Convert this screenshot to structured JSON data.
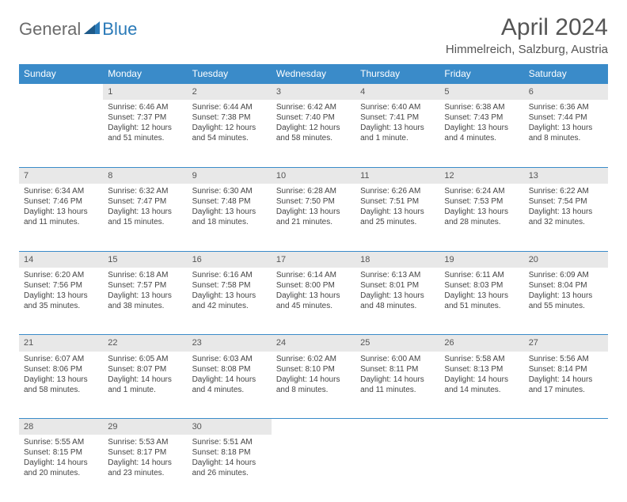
{
  "logo": {
    "part1": "General",
    "part2": "Blue"
  },
  "title": "April 2024",
  "location": "Himmelreich, Salzburg, Austria",
  "colors": {
    "header_bg": "#3a8bc9",
    "header_text": "#ffffff",
    "daynum_bg": "#e8e8e8",
    "border": "#3a8bc9",
    "logo_gray": "#6b6b6b",
    "logo_blue": "#2a7ab8"
  },
  "weekdays": [
    "Sunday",
    "Monday",
    "Tuesday",
    "Wednesday",
    "Thursday",
    "Friday",
    "Saturday"
  ],
  "weeks": [
    {
      "nums": [
        "",
        "1",
        "2",
        "3",
        "4",
        "5",
        "6"
      ],
      "cells": [
        {
          "empty": true
        },
        {
          "sunrise": "Sunrise: 6:46 AM",
          "sunset": "Sunset: 7:37 PM",
          "daylight": "Daylight: 12 hours and 51 minutes."
        },
        {
          "sunrise": "Sunrise: 6:44 AM",
          "sunset": "Sunset: 7:38 PM",
          "daylight": "Daylight: 12 hours and 54 minutes."
        },
        {
          "sunrise": "Sunrise: 6:42 AM",
          "sunset": "Sunset: 7:40 PM",
          "daylight": "Daylight: 12 hours and 58 minutes."
        },
        {
          "sunrise": "Sunrise: 6:40 AM",
          "sunset": "Sunset: 7:41 PM",
          "daylight": "Daylight: 13 hours and 1 minute."
        },
        {
          "sunrise": "Sunrise: 6:38 AM",
          "sunset": "Sunset: 7:43 PM",
          "daylight": "Daylight: 13 hours and 4 minutes."
        },
        {
          "sunrise": "Sunrise: 6:36 AM",
          "sunset": "Sunset: 7:44 PM",
          "daylight": "Daylight: 13 hours and 8 minutes."
        }
      ]
    },
    {
      "nums": [
        "7",
        "8",
        "9",
        "10",
        "11",
        "12",
        "13"
      ],
      "cells": [
        {
          "sunrise": "Sunrise: 6:34 AM",
          "sunset": "Sunset: 7:46 PM",
          "daylight": "Daylight: 13 hours and 11 minutes."
        },
        {
          "sunrise": "Sunrise: 6:32 AM",
          "sunset": "Sunset: 7:47 PM",
          "daylight": "Daylight: 13 hours and 15 minutes."
        },
        {
          "sunrise": "Sunrise: 6:30 AM",
          "sunset": "Sunset: 7:48 PM",
          "daylight": "Daylight: 13 hours and 18 minutes."
        },
        {
          "sunrise": "Sunrise: 6:28 AM",
          "sunset": "Sunset: 7:50 PM",
          "daylight": "Daylight: 13 hours and 21 minutes."
        },
        {
          "sunrise": "Sunrise: 6:26 AM",
          "sunset": "Sunset: 7:51 PM",
          "daylight": "Daylight: 13 hours and 25 minutes."
        },
        {
          "sunrise": "Sunrise: 6:24 AM",
          "sunset": "Sunset: 7:53 PM",
          "daylight": "Daylight: 13 hours and 28 minutes."
        },
        {
          "sunrise": "Sunrise: 6:22 AM",
          "sunset": "Sunset: 7:54 PM",
          "daylight": "Daylight: 13 hours and 32 minutes."
        }
      ]
    },
    {
      "nums": [
        "14",
        "15",
        "16",
        "17",
        "18",
        "19",
        "20"
      ],
      "cells": [
        {
          "sunrise": "Sunrise: 6:20 AM",
          "sunset": "Sunset: 7:56 PM",
          "daylight": "Daylight: 13 hours and 35 minutes."
        },
        {
          "sunrise": "Sunrise: 6:18 AM",
          "sunset": "Sunset: 7:57 PM",
          "daylight": "Daylight: 13 hours and 38 minutes."
        },
        {
          "sunrise": "Sunrise: 6:16 AM",
          "sunset": "Sunset: 7:58 PM",
          "daylight": "Daylight: 13 hours and 42 minutes."
        },
        {
          "sunrise": "Sunrise: 6:14 AM",
          "sunset": "Sunset: 8:00 PM",
          "daylight": "Daylight: 13 hours and 45 minutes."
        },
        {
          "sunrise": "Sunrise: 6:13 AM",
          "sunset": "Sunset: 8:01 PM",
          "daylight": "Daylight: 13 hours and 48 minutes."
        },
        {
          "sunrise": "Sunrise: 6:11 AM",
          "sunset": "Sunset: 8:03 PM",
          "daylight": "Daylight: 13 hours and 51 minutes."
        },
        {
          "sunrise": "Sunrise: 6:09 AM",
          "sunset": "Sunset: 8:04 PM",
          "daylight": "Daylight: 13 hours and 55 minutes."
        }
      ]
    },
    {
      "nums": [
        "21",
        "22",
        "23",
        "24",
        "25",
        "26",
        "27"
      ],
      "cells": [
        {
          "sunrise": "Sunrise: 6:07 AM",
          "sunset": "Sunset: 8:06 PM",
          "daylight": "Daylight: 13 hours and 58 minutes."
        },
        {
          "sunrise": "Sunrise: 6:05 AM",
          "sunset": "Sunset: 8:07 PM",
          "daylight": "Daylight: 14 hours and 1 minute."
        },
        {
          "sunrise": "Sunrise: 6:03 AM",
          "sunset": "Sunset: 8:08 PM",
          "daylight": "Daylight: 14 hours and 4 minutes."
        },
        {
          "sunrise": "Sunrise: 6:02 AM",
          "sunset": "Sunset: 8:10 PM",
          "daylight": "Daylight: 14 hours and 8 minutes."
        },
        {
          "sunrise": "Sunrise: 6:00 AM",
          "sunset": "Sunset: 8:11 PM",
          "daylight": "Daylight: 14 hours and 11 minutes."
        },
        {
          "sunrise": "Sunrise: 5:58 AM",
          "sunset": "Sunset: 8:13 PM",
          "daylight": "Daylight: 14 hours and 14 minutes."
        },
        {
          "sunrise": "Sunrise: 5:56 AM",
          "sunset": "Sunset: 8:14 PM",
          "daylight": "Daylight: 14 hours and 17 minutes."
        }
      ]
    },
    {
      "nums": [
        "28",
        "29",
        "30",
        "",
        "",
        "",
        ""
      ],
      "cells": [
        {
          "sunrise": "Sunrise: 5:55 AM",
          "sunset": "Sunset: 8:15 PM",
          "daylight": "Daylight: 14 hours and 20 minutes."
        },
        {
          "sunrise": "Sunrise: 5:53 AM",
          "sunset": "Sunset: 8:17 PM",
          "daylight": "Daylight: 14 hours and 23 minutes."
        },
        {
          "sunrise": "Sunrise: 5:51 AM",
          "sunset": "Sunset: 8:18 PM",
          "daylight": "Daylight: 14 hours and 26 minutes."
        },
        {
          "empty": true
        },
        {
          "empty": true
        },
        {
          "empty": true
        },
        {
          "empty": true
        }
      ]
    }
  ]
}
